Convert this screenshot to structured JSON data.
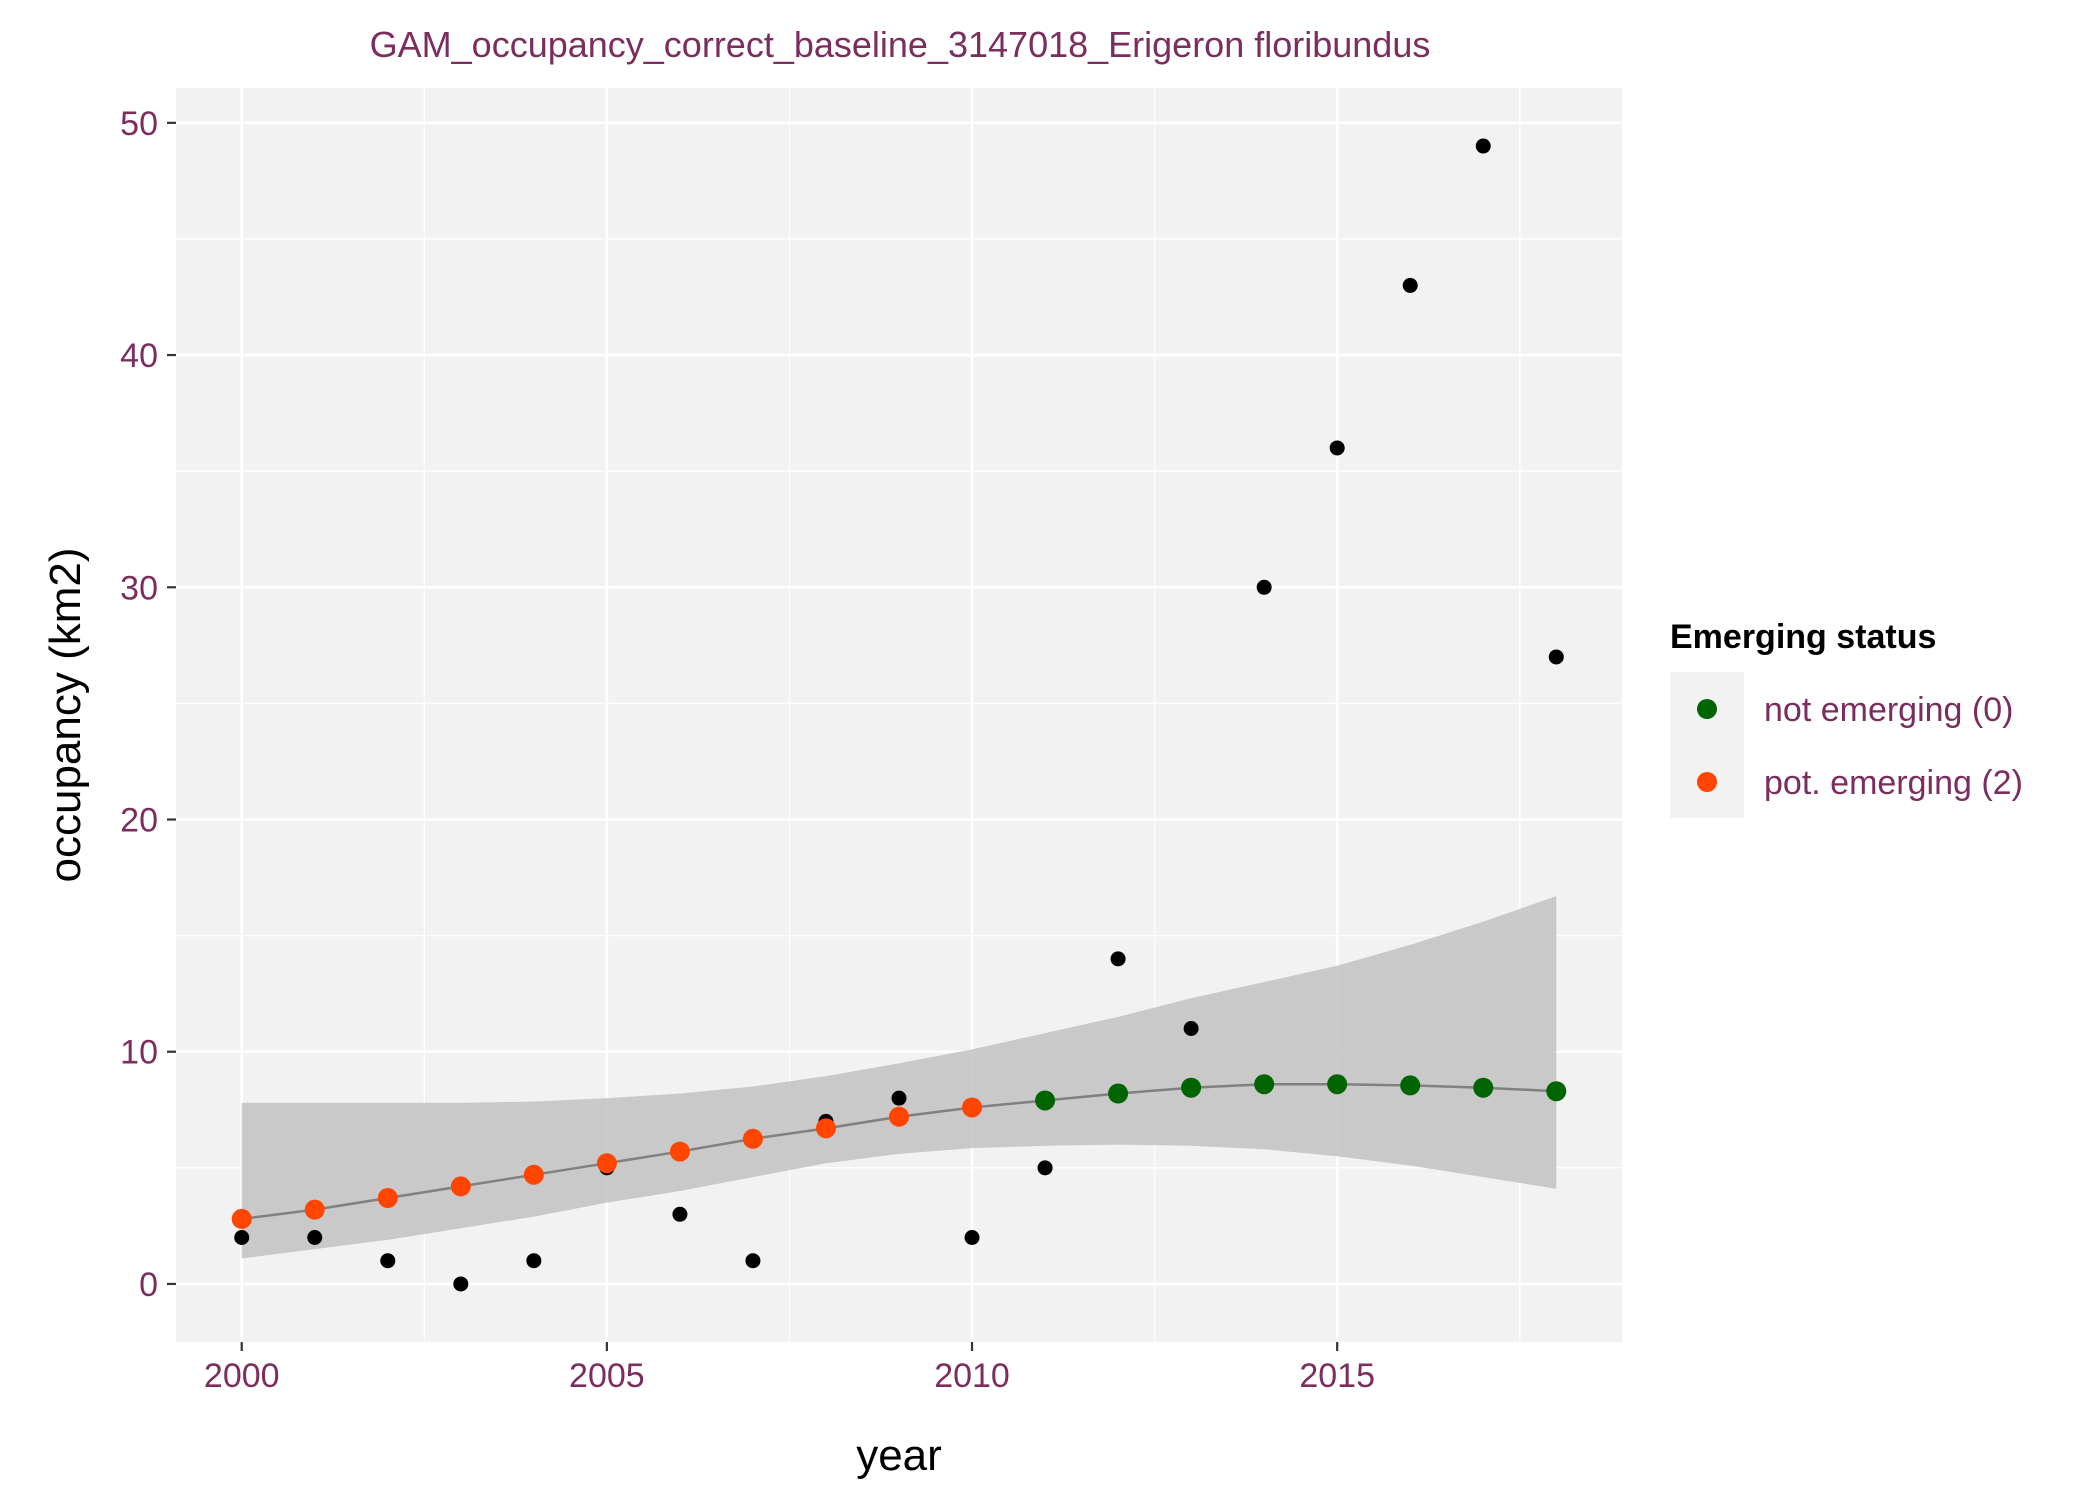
{
  "chart_data": {
    "type": "scatter",
    "title": "GAM_occupancy_correct_baseline_3147018_Erigeron floribundus",
    "xlabel": "year",
    "ylabel": "occupancy (km2)",
    "xlim": [
      1999.1,
      2018.9
    ],
    "ylim": [
      -2.5,
      51.5
    ],
    "x_ticks": [
      2000,
      2005,
      2010,
      2015
    ],
    "x_tick_labels": [
      "2000",
      "2005",
      "2010",
      "2015"
    ],
    "y_ticks": [
      0,
      10,
      20,
      30,
      40,
      50
    ],
    "y_tick_labels": [
      "0",
      "10",
      "20",
      "30",
      "40",
      "50"
    ],
    "x_minor_ticks": [
      2002.5,
      2007.5,
      2012.5,
      2017.5
    ],
    "y_minor_ticks": [
      5,
      15,
      25,
      35,
      45
    ],
    "grid": true,
    "background": "#F2F2F2",
    "observed": {
      "color": "#000000",
      "x": [
        2000,
        2001,
        2002,
        2003,
        2004,
        2005,
        2006,
        2007,
        2008,
        2009,
        2010,
        2011,
        2012,
        2013,
        2014,
        2015,
        2016,
        2017,
        2018
      ],
      "y": [
        2,
        2,
        1,
        0,
        1,
        5,
        3,
        1,
        7,
        8,
        2,
        5,
        14,
        11,
        30,
        36,
        43,
        49,
        27
      ]
    },
    "fit": {
      "line_color": "#808080",
      "ribbon_color": "#BEBEBE",
      "x": [
        2000,
        2001,
        2002,
        2003,
        2004,
        2005,
        2006,
        2007,
        2008,
        2009,
        2010,
        2011,
        2012,
        2013,
        2014,
        2015,
        2016,
        2017,
        2018
      ],
      "y": [
        2.8,
        3.2,
        3.7,
        4.2,
        4.7,
        5.2,
        5.7,
        6.25,
        6.7,
        7.2,
        7.6,
        7.9,
        8.2,
        8.45,
        8.6,
        8.6,
        8.55,
        8.45,
        8.3
      ],
      "lower": [
        1.1,
        1.5,
        1.9,
        2.4,
        2.9,
        3.5,
        4.0,
        4.6,
        5.2,
        5.6,
        5.85,
        5.95,
        6.0,
        5.95,
        5.8,
        5.5,
        5.1,
        4.6,
        4.1
      ],
      "upper": [
        7.8,
        7.8,
        7.8,
        7.8,
        7.85,
        8.0,
        8.2,
        8.5,
        8.95,
        9.5,
        10.1,
        10.8,
        11.5,
        12.3,
        13.0,
        13.7,
        14.6,
        15.6,
        16.7
      ]
    },
    "legend": {
      "title": "Emerging status",
      "placement": "right",
      "entries": [
        {
          "label": "not emerging (0)",
          "color": "#006400"
        },
        {
          "label": "pot. emerging (2)",
          "color": "#FF4500"
        }
      ]
    },
    "status": [
      "pot. emerging (2)",
      "pot. emerging (2)",
      "pot. emerging (2)",
      "pot. emerging (2)",
      "pot. emerging (2)",
      "pot. emerging (2)",
      "pot. emerging (2)",
      "pot. emerging (2)",
      "pot. emerging (2)",
      "pot. emerging (2)",
      "pot. emerging (2)",
      "not emerging (0)",
      "not emerging (0)",
      "not emerging (0)",
      "not emerging (0)",
      "not emerging (0)",
      "not emerging (0)",
      "not emerging (0)",
      "not emerging (0)"
    ]
  }
}
